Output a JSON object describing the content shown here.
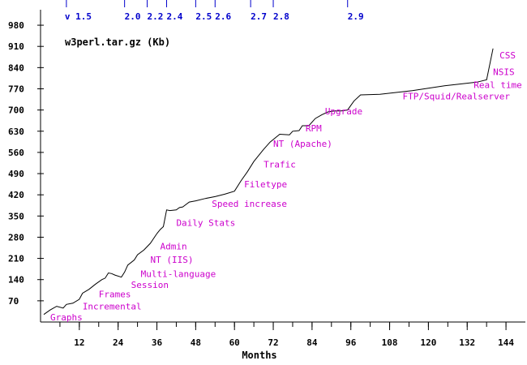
{
  "chart_data": {
    "type": "line",
    "title": "w3perl.tar.gz (Kb)",
    "xlabel": "Months",
    "ylabel": "",
    "xlim": [
      0,
      150
    ],
    "ylim": [
      0,
      1015
    ],
    "x_ticks": [
      12,
      24,
      36,
      48,
      60,
      72,
      84,
      96,
      108,
      120,
      132,
      144
    ],
    "y_ticks": [
      70,
      140,
      210,
      280,
      350,
      420,
      490,
      560,
      630,
      700,
      770,
      840,
      910,
      980
    ],
    "series": [
      {
        "name": "w3perl.tar.gz (Kb)",
        "points": [
          [
            1,
            25
          ],
          [
            3,
            40
          ],
          [
            5,
            52
          ],
          [
            7,
            46
          ],
          [
            8,
            58
          ],
          [
            10,
            62
          ],
          [
            12,
            75
          ],
          [
            13,
            95
          ],
          [
            15,
            108
          ],
          [
            17,
            125
          ],
          [
            19,
            140
          ],
          [
            20,
            145
          ],
          [
            21,
            162
          ],
          [
            22,
            160
          ],
          [
            23,
            155
          ],
          [
            25,
            148
          ],
          [
            26,
            165
          ],
          [
            27,
            188
          ],
          [
            29,
            205
          ],
          [
            30,
            222
          ],
          [
            32,
            238
          ],
          [
            34,
            260
          ],
          [
            36,
            292
          ],
          [
            37,
            305
          ],
          [
            38,
            315
          ],
          [
            39,
            370
          ],
          [
            40,
            368
          ],
          [
            42,
            370
          ],
          [
            43,
            378
          ],
          [
            44,
            380
          ],
          [
            46,
            396
          ],
          [
            48,
            400
          ],
          [
            51,
            408
          ],
          [
            54,
            414
          ],
          [
            57,
            422
          ],
          [
            60,
            432
          ],
          [
            62,
            466
          ],
          [
            64,
            496
          ],
          [
            66,
            530
          ],
          [
            69,
            570
          ],
          [
            71,
            594
          ],
          [
            74,
            620
          ],
          [
            77,
            618
          ],
          [
            78,
            630
          ],
          [
            80,
            632
          ],
          [
            81,
            648
          ],
          [
            83,
            648
          ],
          [
            85,
            672
          ],
          [
            87,
            684
          ],
          [
            89,
            694
          ],
          [
            91,
            697
          ],
          [
            93,
            697
          ],
          [
            95,
            700
          ],
          [
            97,
            730
          ],
          [
            99,
            750
          ],
          [
            105,
            752
          ],
          [
            110,
            758
          ],
          [
            115,
            764
          ],
          [
            120,
            772
          ],
          [
            125,
            780
          ],
          [
            130,
            786
          ],
          [
            135,
            792
          ],
          [
            138,
            800
          ],
          [
            140,
            903
          ]
        ]
      }
    ],
    "versions": [
      {
        "label": "v 1.5",
        "month": 8
      },
      {
        "label": "2.0",
        "month": 26
      },
      {
        "label": "2.2",
        "month": 33
      },
      {
        "label": "2.4",
        "month": 39
      },
      {
        "label": "2.5",
        "month": 48
      },
      {
        "label": "2.6",
        "month": 54
      },
      {
        "label": "2.7",
        "month": 65
      },
      {
        "label": "2.8",
        "month": 72
      },
      {
        "label": "2.9",
        "month": 95
      }
    ],
    "annotations": [
      {
        "text": "Graphs",
        "month": 3,
        "value": 5
      },
      {
        "text": "Incremental",
        "month": 13,
        "value": 42
      },
      {
        "text": "Frames",
        "month": 18,
        "value": 82
      },
      {
        "text": "Session",
        "month": 28,
        "value": 112
      },
      {
        "text": "Multi-language",
        "month": 31,
        "value": 148
      },
      {
        "text": "NT (IIS)",
        "month": 34,
        "value": 195
      },
      {
        "text": "Admin",
        "month": 37,
        "value": 240
      },
      {
        "text": "Daily Stats",
        "month": 42,
        "value": 318
      },
      {
        "text": "Speed increase",
        "month": 53,
        "value": 380
      },
      {
        "text": "Filetype",
        "month": 63,
        "value": 445
      },
      {
        "text": "Trafic",
        "month": 69,
        "value": 510
      },
      {
        "text": "NT (Apache)",
        "month": 72,
        "value": 578
      },
      {
        "text": "RPM",
        "month": 82,
        "value": 630
      },
      {
        "text": "Upgrade",
        "month": 88,
        "value": 686
      },
      {
        "text": "FTP/Squid/Realserver",
        "month": 112,
        "value": 735
      },
      {
        "text": "Real time",
        "month": 134,
        "value": 773
      },
      {
        "text": "NSIS",
        "month": 140,
        "value": 815
      },
      {
        "text": "CSS",
        "month": 142,
        "value": 870
      }
    ],
    "colors": {
      "line": "#000000",
      "axis": "#000000",
      "versions": "#0000cc",
      "annotations": "#cc00cc"
    }
  }
}
